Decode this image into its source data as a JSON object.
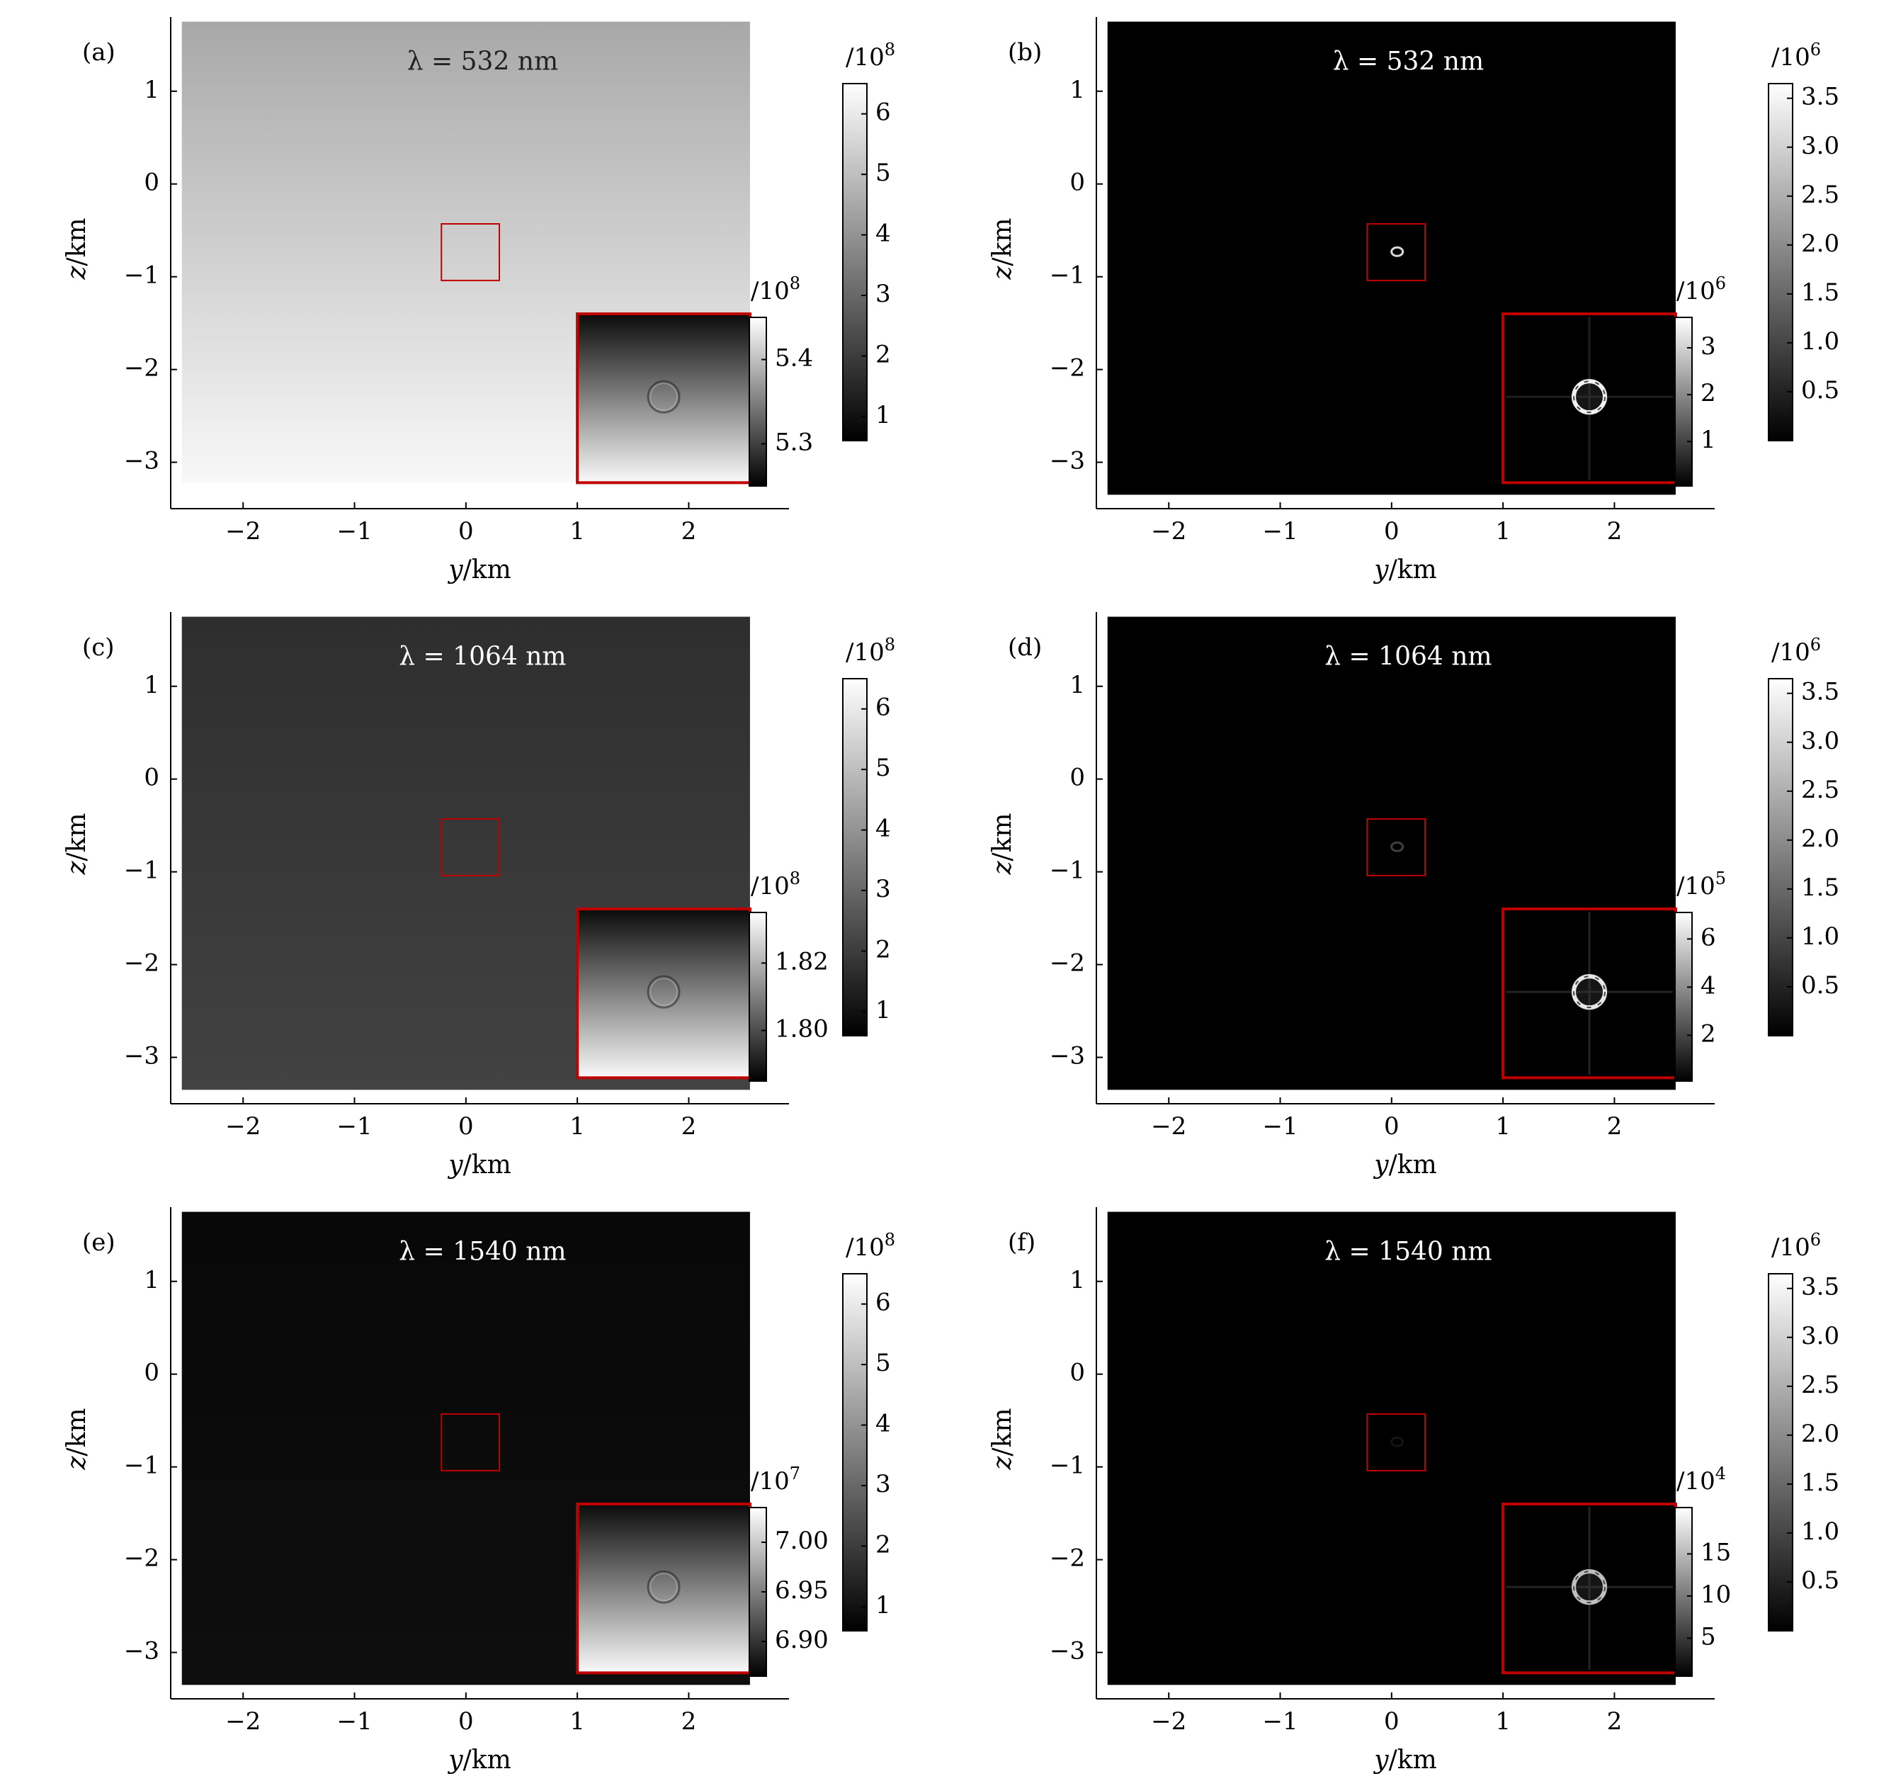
{
  "figure": {
    "colors": {
      "axis": "#000000",
      "inset_frame": "#c00000",
      "roi_box": "#c00000",
      "text_on_light": "#222222",
      "text_on_dark": "#ffffff"
    }
  },
  "chart_data": [
    {
      "panel": "(a)",
      "type": "heatmap",
      "colormap": "gray",
      "annotation": "λ = 532 nm",
      "xlabel": "y/km",
      "ylabel": "z/km",
      "xticks": [
        -2,
        -1,
        0,
        1,
        2
      ],
      "xtick_labels": [
        "−2",
        "−1",
        "0",
        "1",
        "2"
      ],
      "yticks": [
        1,
        0,
        -1,
        -2,
        -3
      ],
      "ytick_labels": [
        "1",
        "0",
        "−1",
        "−2",
        "−3"
      ],
      "xlim": [
        -2.65,
        2.9
      ],
      "ylim": [
        -3.5,
        1.8
      ],
      "image_extent": {
        "y": [
          -2.55,
          2.55
        ],
        "z": [
          -3.22,
          1.75
        ]
      },
      "field_gradient": {
        "top_gray": 168,
        "bottom_gray": 248
      },
      "roi_box": {
        "y": [
          -0.22,
          0.3
        ],
        "z": [
          -1.04,
          -0.43
        ]
      },
      "inset": {
        "extent": {
          "y": [
            1.0,
            2.55
          ],
          "z": [
            -3.22,
            -1.4
          ]
        },
        "gradient": {
          "top_gray": 10,
          "bottom_gray": 250
        },
        "ring": "faint",
        "colorbar": {
          "exponent_label": "/10",
          "exponent": "8",
          "ticks": [
            5.4,
            5.3
          ],
          "tick_labels": [
            "5.4",
            "5.3"
          ],
          "range": [
            5.25,
            5.45
          ]
        }
      },
      "colorbar": {
        "exponent_label": "/10",
        "exponent": "8",
        "ticks": [
          6,
          5,
          4,
          3,
          2,
          1
        ],
        "tick_labels": [
          "6",
          "5",
          "4",
          "3",
          "2",
          "1"
        ],
        "range": [
          0.6,
          6.5
        ]
      }
    },
    {
      "panel": "(b)",
      "type": "heatmap",
      "colormap": "gray",
      "annotation": "λ = 532 nm",
      "xlabel": "y/km",
      "ylabel": "z/km",
      "xticks": [
        -2,
        -1,
        0,
        1,
        2
      ],
      "xtick_labels": [
        "−2",
        "−1",
        "0",
        "1",
        "2"
      ],
      "yticks": [
        1,
        0,
        -1,
        -2,
        -3
      ],
      "ytick_labels": [
        "1",
        "0",
        "−1",
        "−2",
        "−3"
      ],
      "xlim": [
        -2.65,
        2.9
      ],
      "ylim": [
        -3.5,
        1.8
      ],
      "image_extent": {
        "y": [
          -2.55,
          2.55
        ],
        "z": [
          -3.35,
          1.75
        ]
      },
      "field_gradient": {
        "top_gray": 0,
        "bottom_gray": 0
      },
      "roi_box": {
        "y": [
          -0.22,
          0.3
        ],
        "z": [
          -1.04,
          -0.43
        ]
      },
      "roi_ring_brightness": 0.85,
      "inset": {
        "extent": {
          "y": [
            1.0,
            2.55
          ],
          "z": [
            -3.22,
            -1.4
          ]
        },
        "gradient": {
          "top_gray": 0,
          "bottom_gray": 0
        },
        "ring": "bright",
        "ring_brightness": 0.95,
        "cross_brightness": 0.12,
        "colorbar": {
          "exponent_label": "/10",
          "exponent": "6",
          "ticks": [
            3,
            2,
            1
          ],
          "tick_labels": [
            "3",
            "2",
            "1"
          ],
          "range": [
            0.05,
            3.65
          ]
        }
      },
      "colorbar": {
        "exponent_label": "/10",
        "exponent": "6",
        "ticks": [
          3.5,
          3.0,
          2.5,
          2.0,
          1.5,
          1.0,
          0.5
        ],
        "tick_labels": [
          "3.5",
          "3.0",
          "2.5",
          "2.0",
          "1.5",
          "1.0",
          "0.5"
        ],
        "range": [
          0.0,
          3.65
        ]
      }
    },
    {
      "panel": "(c)",
      "type": "heatmap",
      "colormap": "gray",
      "annotation": "λ = 1064 nm",
      "xlabel": "y/km",
      "ylabel": "z/km",
      "xticks": [
        -2,
        -1,
        0,
        1,
        2
      ],
      "xtick_labels": [
        "−2",
        "−1",
        "0",
        "1",
        "2"
      ],
      "yticks": [
        1,
        0,
        -1,
        -2,
        -3
      ],
      "ytick_labels": [
        "1",
        "0",
        "−1",
        "−2",
        "−3"
      ],
      "xlim": [
        -2.65,
        2.9
      ],
      "ylim": [
        -3.5,
        1.8
      ],
      "image_extent": {
        "y": [
          -2.55,
          2.55
        ],
        "z": [
          -3.35,
          1.75
        ]
      },
      "field_gradient": {
        "top_gray": 46,
        "bottom_gray": 66
      },
      "roi_box": {
        "y": [
          -0.22,
          0.3
        ],
        "z": [
          -1.04,
          -0.43
        ]
      },
      "inset": {
        "extent": {
          "y": [
            1.0,
            2.55
          ],
          "z": [
            -3.22,
            -1.4
          ]
        },
        "gradient": {
          "top_gray": 10,
          "bottom_gray": 250
        },
        "ring": "faint",
        "colorbar": {
          "exponent_label": "/10",
          "exponent": "8",
          "ticks": [
            1.82,
            1.8
          ],
          "tick_labels": [
            "1.82",
            "1.80"
          ],
          "range": [
            1.785,
            1.835
          ]
        }
      },
      "colorbar": {
        "exponent_label": "/10",
        "exponent": "8",
        "ticks": [
          6,
          5,
          4,
          3,
          2,
          1
        ],
        "tick_labels": [
          "6",
          "5",
          "4",
          "3",
          "2",
          "1"
        ],
        "range": [
          0.6,
          6.5
        ]
      }
    },
    {
      "panel": "(d)",
      "type": "heatmap",
      "colormap": "gray",
      "annotation": "λ = 1064 nm",
      "xlabel": "y/km",
      "ylabel": "z/km",
      "xticks": [
        -2,
        -1,
        0,
        1,
        2
      ],
      "xtick_labels": [
        "−2",
        "−1",
        "0",
        "1",
        "2"
      ],
      "yticks": [
        1,
        0,
        -1,
        -2,
        -3
      ],
      "ytick_labels": [
        "1",
        "0",
        "−1",
        "−2",
        "−3"
      ],
      "xlim": [
        -2.65,
        2.9
      ],
      "ylim": [
        -3.5,
        1.8
      ],
      "image_extent": {
        "y": [
          -2.55,
          2.55
        ],
        "z": [
          -3.35,
          1.75
        ]
      },
      "field_gradient": {
        "top_gray": 0,
        "bottom_gray": 0
      },
      "roi_box": {
        "y": [
          -0.22,
          0.3
        ],
        "z": [
          -1.04,
          -0.43
        ]
      },
      "roi_ring_brightness": 0.25,
      "inset": {
        "extent": {
          "y": [
            1.0,
            2.55
          ],
          "z": [
            -3.22,
            -1.4
          ]
        },
        "gradient": {
          "top_gray": 0,
          "bottom_gray": 0
        },
        "ring": "bright",
        "ring_brightness": 0.9,
        "cross_brightness": 0.14,
        "colorbar": {
          "exponent_label": "/10",
          "exponent": "5",
          "ticks": [
            6,
            4,
            2
          ],
          "tick_labels": [
            "6",
            "4",
            "2"
          ],
          "range": [
            0.1,
            7.1
          ]
        }
      },
      "colorbar": {
        "exponent_label": "/10",
        "exponent": "6",
        "ticks": [
          3.5,
          3.0,
          2.5,
          2.0,
          1.5,
          1.0,
          0.5
        ],
        "tick_labels": [
          "3.5",
          "3.0",
          "2.5",
          "2.0",
          "1.5",
          "1.0",
          "0.5"
        ],
        "range": [
          0.0,
          3.65
        ]
      }
    },
    {
      "panel": "(e)",
      "type": "heatmap",
      "colormap": "gray",
      "annotation": "λ = 1540 nm",
      "xlabel": "y/km",
      "ylabel": "z/km",
      "xticks": [
        -2,
        -1,
        0,
        1,
        2
      ],
      "xtick_labels": [
        "−2",
        "−1",
        "0",
        "1",
        "2"
      ],
      "yticks": [
        1,
        0,
        -1,
        -2,
        -3
      ],
      "ytick_labels": [
        "1",
        "0",
        "−1",
        "−2",
        "−3"
      ],
      "xlim": [
        -2.65,
        2.9
      ],
      "ylim": [
        -3.5,
        1.8
      ],
      "image_extent": {
        "y": [
          -2.55,
          2.55
        ],
        "z": [
          -3.35,
          1.75
        ]
      },
      "field_gradient": {
        "top_gray": 8,
        "bottom_gray": 14
      },
      "roi_box": {
        "y": [
          -0.22,
          0.3
        ],
        "z": [
          -1.04,
          -0.43
        ]
      },
      "inset": {
        "extent": {
          "y": [
            1.0,
            2.55
          ],
          "z": [
            -3.22,
            -1.4
          ]
        },
        "gradient": {
          "top_gray": 10,
          "bottom_gray": 250
        },
        "ring": "faint",
        "colorbar": {
          "exponent_label": "/10",
          "exponent": "7",
          "ticks": [
            7.0,
            6.95,
            6.9
          ],
          "tick_labels": [
            "7.00",
            "6.95",
            "6.90"
          ],
          "range": [
            6.865,
            7.035
          ]
        }
      },
      "colorbar": {
        "exponent_label": "/10",
        "exponent": "8",
        "ticks": [
          6,
          5,
          4,
          3,
          2,
          1
        ],
        "tick_labels": [
          "6",
          "5",
          "4",
          "3",
          "2",
          "1"
        ],
        "range": [
          0.6,
          6.5
        ]
      }
    },
    {
      "panel": "(f)",
      "type": "heatmap",
      "colormap": "gray",
      "annotation": "λ = 1540 nm",
      "xlabel": "y/km",
      "ylabel": "z/km",
      "xticks": [
        -2,
        -1,
        0,
        1,
        2
      ],
      "xtick_labels": [
        "−2",
        "−1",
        "0",
        "1",
        "2"
      ],
      "yticks": [
        1,
        0,
        -1,
        -2,
        -3
      ],
      "ytick_labels": [
        "1",
        "0",
        "−1",
        "−2",
        "−3"
      ],
      "xlim": [
        -2.65,
        2.9
      ],
      "ylim": [
        -3.5,
        1.8
      ],
      "image_extent": {
        "y": [
          -2.55,
          2.55
        ],
        "z": [
          -3.35,
          1.75
        ]
      },
      "field_gradient": {
        "top_gray": 0,
        "bottom_gray": 0
      },
      "roi_box": {
        "y": [
          -0.22,
          0.3
        ],
        "z": [
          -1.04,
          -0.43
        ]
      },
      "roi_ring_brightness": 0.08,
      "inset": {
        "extent": {
          "y": [
            1.0,
            2.55
          ],
          "z": [
            -3.22,
            -1.4
          ]
        },
        "gradient": {
          "top_gray": 0,
          "bottom_gray": 0
        },
        "ring": "bright",
        "ring_brightness": 0.75,
        "cross_brightness": 0.14,
        "colorbar": {
          "exponent_label": "/10",
          "exponent": "4",
          "ticks": [
            15,
            10,
            5
          ],
          "tick_labels": [
            "15",
            "10",
            "5"
          ],
          "range": [
            0.5,
            20.5
          ]
        }
      },
      "colorbar": {
        "exponent_label": "/10",
        "exponent": "6",
        "ticks": [
          3.5,
          3.0,
          2.5,
          2.0,
          1.5,
          1.0,
          0.5
        ],
        "tick_labels": [
          "3.5",
          "3.0",
          "2.5",
          "2.0",
          "1.5",
          "1.0",
          "0.5"
        ],
        "range": [
          0.0,
          3.65
        ]
      }
    }
  ]
}
